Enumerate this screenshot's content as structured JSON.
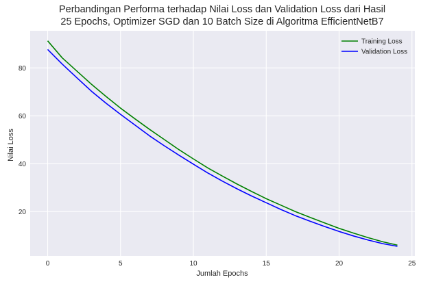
{
  "chart_data": {
    "type": "line",
    "title_lines": [
      "Perbandingan Performa terhadap Nilai Loss dan Validation Loss dari Hasil",
      "25 Epochs, Optimizer SGD dan 10 Batch Size di Algoritma EfficientNetB7"
    ],
    "xlabel": "Jumlah Epochs",
    "ylabel": "Nilai Loss",
    "xlim": [
      -1.2,
      25.2
    ],
    "ylim": [
      1.5,
      95.5
    ],
    "xticks": [
      0,
      5,
      10,
      15,
      20,
      25
    ],
    "yticks": [
      20,
      40,
      60,
      80
    ],
    "grid": true,
    "legend_position": "top-right",
    "x": [
      0,
      1,
      2,
      3,
      4,
      5,
      6,
      7,
      8,
      9,
      10,
      11,
      12,
      13,
      14,
      15,
      16,
      17,
      18,
      19,
      20,
      21,
      22,
      23,
      24
    ],
    "series": [
      {
        "name": "Training Loss",
        "color": "#008000",
        "values": [
          91.3,
          84.2,
          78.7,
          73.2,
          68.1,
          63.2,
          58.7,
          54.3,
          50.1,
          45.9,
          42.0,
          38.2,
          34.8,
          31.5,
          28.4,
          25.4,
          22.7,
          20.0,
          17.6,
          15.3,
          13.0,
          11.0,
          9.1,
          7.4,
          6.0
        ]
      },
      {
        "name": "Validation Loss",
        "color": "#0000FF",
        "values": [
          87.7,
          81.6,
          75.9,
          70.3,
          65.3,
          60.6,
          56.1,
          51.6,
          47.5,
          43.6,
          39.8,
          36.1,
          32.7,
          29.5,
          26.5,
          23.7,
          20.9,
          18.3,
          16.0,
          13.8,
          11.7,
          9.8,
          8.1,
          6.6,
          5.5
        ]
      }
    ]
  }
}
